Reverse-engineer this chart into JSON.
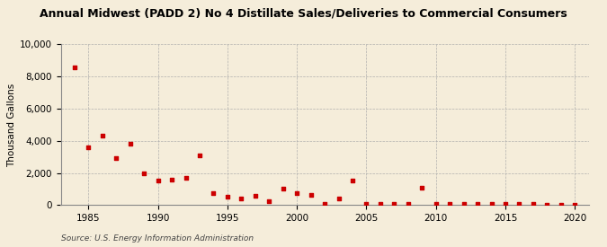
{
  "title": "Annual Midwest (PADD 2) No 4 Distillate Sales/Deliveries to Commercial Consumers",
  "ylabel": "Thousand Gallons",
  "source": "Source: U.S. Energy Information Administration",
  "background_color": "#f5edda",
  "marker_color": "#cc0000",
  "xlim": [
    1983,
    2021
  ],
  "ylim": [
    0,
    10000
  ],
  "yticks": [
    0,
    2000,
    4000,
    6000,
    8000,
    10000
  ],
  "xticks": [
    1985,
    1990,
    1995,
    2000,
    2005,
    2010,
    2015,
    2020
  ],
  "years": [
    1984,
    1985,
    1986,
    1987,
    1988,
    1989,
    1990,
    1991,
    1992,
    1993,
    1994,
    1995,
    1996,
    1997,
    1998,
    1999,
    2000,
    2001,
    2002,
    2003,
    2004,
    2005,
    2006,
    2007,
    2008,
    2009,
    2010,
    2011,
    2012,
    2013,
    2014,
    2015,
    2016,
    2017,
    2018,
    2019,
    2020
  ],
  "values": [
    8600,
    3600,
    4300,
    2950,
    3800,
    1950,
    1500,
    1600,
    1700,
    3100,
    750,
    500,
    430,
    600,
    220,
    1000,
    750,
    650,
    50,
    380,
    1500,
    50,
    80,
    80,
    50,
    1100,
    50,
    80,
    50,
    50,
    50,
    50,
    50,
    50,
    30,
    30,
    30
  ]
}
